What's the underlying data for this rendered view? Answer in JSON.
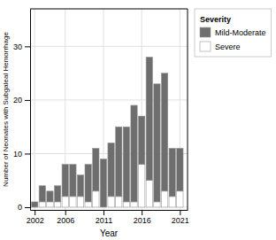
{
  "chart_data": {
    "type": "bar",
    "stacked": true,
    "x": [
      2002,
      2003,
      2004,
      2005,
      2006,
      2007,
      2008,
      2009,
      2010,
      2011,
      2012,
      2013,
      2014,
      2015,
      2016,
      2017,
      2018,
      2019,
      2020,
      2021
    ],
    "series": [
      {
        "name": "Mild-Moderate",
        "color": "#6e6e6e",
        "values": [
          1,
          3,
          2,
          3,
          6,
          6,
          4,
          7,
          8,
          9,
          10,
          13,
          14,
          18,
          9,
          23,
          22,
          22,
          9,
          8
        ]
      },
      {
        "name": "Severe",
        "color": "#ffffff",
        "values": [
          0,
          1,
          1,
          1,
          2,
          2,
          2,
          1,
          3,
          0,
          2,
          2,
          1,
          1,
          8,
          5,
          1,
          3,
          2,
          3
        ]
      }
    ],
    "xlabel": "Year",
    "ylabel": "Number of Neonates with Subgaleal Hemorrhage",
    "legend_title": "Severity",
    "xlim": [
      2001.4,
      2022.0
    ],
    "ylim": [
      -0.5,
      37
    ],
    "xticks": [
      2002,
      2006,
      2011,
      2016,
      2021
    ],
    "yticks": [
      0,
      10,
      20,
      30
    ],
    "grid": true,
    "legend": "right"
  }
}
